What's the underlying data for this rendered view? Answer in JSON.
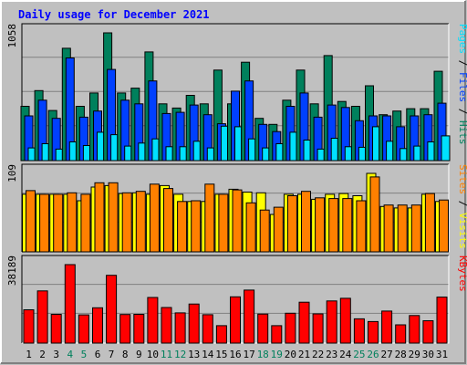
{
  "chart_data": {
    "type": "bar",
    "title": "Daily usage for December 2021",
    "categories": [
      "1",
      "2",
      "3",
      "4",
      "5",
      "6",
      "7",
      "8",
      "9",
      "10",
      "11",
      "12",
      "13",
      "14",
      "15",
      "16",
      "17",
      "18",
      "19",
      "20",
      "21",
      "22",
      "23",
      "24",
      "25",
      "26",
      "27",
      "28",
      "29",
      "30",
      "31"
    ],
    "weekend_days": [
      "4",
      "5",
      "11",
      "12",
      "18",
      "19",
      "25",
      "26"
    ],
    "panels": [
      {
        "id": "hits-files-pages",
        "max_label": "1058",
        "ymax": 1058,
        "legend": [
          {
            "text": "Pages",
            "color": "#00e0ff"
          },
          {
            "text": " / ",
            "color": "#000000"
          },
          {
            "text": "Files",
            "color": "#0040ff"
          },
          {
            "text": " / ",
            "color": "#000000"
          },
          {
            "text": "Hits",
            "color": "#00805c"
          }
        ],
        "series": [
          {
            "name": "Hits",
            "color": "#00805c",
            "values": [
              450,
              580,
              415,
              930,
              450,
              560,
              1058,
              560,
              600,
              900,
              470,
              435,
              540,
              470,
              750,
              470,
              815,
              350,
              300,
              500,
              750,
              470,
              870,
              490,
              450,
              620,
              380,
              410,
              430,
              430,
              740
            ]
          },
          {
            "name": "Files",
            "color": "#0040ff",
            "values": [
              370,
              500,
              350,
              850,
              360,
              410,
              755,
              500,
              470,
              660,
              390,
              400,
              460,
              380,
              305,
              575,
              660,
              300,
              240,
              450,
              560,
              360,
              460,
              440,
              330,
              370,
              370,
              280,
              370,
              380,
              475
            ]
          },
          {
            "name": "Pages",
            "color": "#00e0ff",
            "values": [
              105,
              140,
              95,
              155,
              125,
              235,
              215,
              120,
              145,
              180,
              115,
              115,
              160,
              105,
              285,
              280,
              180,
              105,
              140,
              235,
              170,
              95,
              185,
              115,
              110,
              280,
              160,
              100,
              120,
              155,
              205
            ]
          }
        ]
      },
      {
        "id": "visits-sites",
        "max_label": "109",
        "ymax": 109,
        "legend": [
          {
            "text": "Sites",
            "color": "#ff8000"
          },
          {
            "text": " / ",
            "color": "#000000"
          },
          {
            "text": "Visits",
            "color": "#ffff00"
          }
        ],
        "series": [
          {
            "name": "Visits",
            "color": "#ffff00",
            "values": [
              80,
              80,
              80,
              80,
              71,
              90,
              92,
              81,
              82,
              80,
              92,
              80,
              70,
              70,
              80,
              87,
              83,
              82,
              52,
              80,
              80,
              73,
              80,
              81,
              78,
              109,
              63,
              61,
              61,
              80,
              70
            ]
          },
          {
            "name": "Sites",
            "color": "#ff8000",
            "values": [
              85,
              80,
              80,
              82,
              80,
              96,
              96,
              82,
              84,
              94,
              88,
              70,
              71,
              94,
              80,
              86,
              68,
              58,
              62,
              78,
              84,
              75,
              74,
              74,
              71,
              104,
              65,
              65,
              65,
              81,
              72
            ]
          }
        ]
      },
      {
        "id": "kbytes",
        "max_label": "38189",
        "ymax": 38189,
        "legend": [
          {
            "text": "KBytes",
            "color": "#ff0000"
          }
        ],
        "series": [
          {
            "name": "KBytes",
            "color": "#ff0000",
            "values": [
              16200,
              25400,
              14000,
              38189,
              13700,
              17200,
              33000,
              13900,
              14000,
              22200,
              17300,
              14700,
              19000,
              13800,
              8500,
              22500,
              25800,
              14100,
              8500,
              14500,
              19900,
              14200,
              20500,
              21800,
              11800,
              10500,
              15600,
              8900,
              13400,
              10900,
              22400
            ]
          }
        ]
      }
    ]
  }
}
